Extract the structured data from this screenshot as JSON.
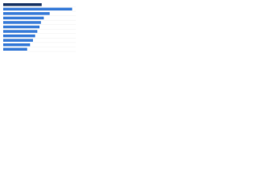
{
  "chart_data": {
    "type": "bar",
    "orientation": "horizontal",
    "categories": [
      null,
      null,
      null,
      null,
      null,
      null,
      null,
      null,
      null,
      null,
      null
    ],
    "values": [
      53,
      95,
      64,
      56,
      52,
      50,
      47,
      44,
      41,
      37,
      33
    ],
    "colors": [
      "#1f3a68",
      "#3b7dd8",
      "#3b7dd8",
      "#3b7dd8",
      "#3b7dd8",
      "#3b7dd8",
      "#3b7dd8",
      "#3b7dd8",
      "#3b7dd8",
      "#3b7dd8",
      "#3b7dd8"
    ],
    "xlim": [
      0,
      100
    ]
  }
}
